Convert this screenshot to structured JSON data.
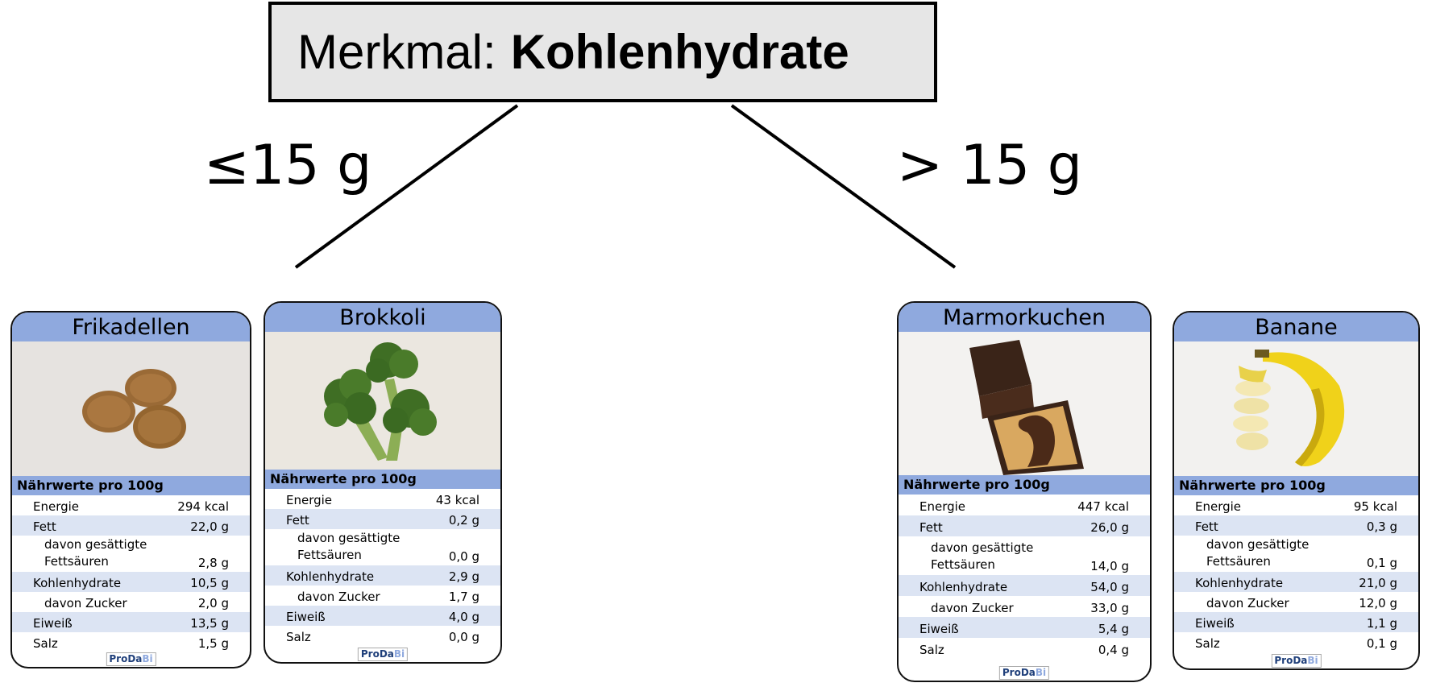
{
  "header": {
    "prefix": "Merkmal:",
    "feature": "Kohlenhydrate"
  },
  "branches": {
    "left": "≤15 g",
    "right": "> 15 g"
  },
  "cards": [
    {
      "title": "Frikadellen",
      "nutrition_heading": "Nährwerte pro 100g",
      "rows": [
        {
          "label": "Energie",
          "value": "294 kcal"
        },
        {
          "label": "Fett",
          "value": "22,0 g"
        },
        {
          "label1": "davon gesättigte",
          "label2": "Fettsäuren",
          "value": "2,8 g"
        },
        {
          "label": "Kohlenhydrate",
          "value": "10,5 g"
        },
        {
          "label": "davon Zucker",
          "value": "2,0 g"
        },
        {
          "label": "Eiweiß",
          "value": "13,5 g"
        },
        {
          "label": "Salz",
          "value": "1,5 g"
        }
      ],
      "logo": {
        "a": "ProDa",
        "b": "Bi"
      }
    },
    {
      "title": "Brokkoli",
      "nutrition_heading": "Nährwerte pro 100g",
      "rows": [
        {
          "label": "Energie",
          "value": "43 kcal"
        },
        {
          "label": "Fett",
          "value": "0,2 g"
        },
        {
          "label1": "davon gesättigte",
          "label2": "Fettsäuren",
          "value": "0,0 g"
        },
        {
          "label": "Kohlenhydrate",
          "value": "2,9 g"
        },
        {
          "label": "davon Zucker",
          "value": "1,7 g"
        },
        {
          "label": "Eiweiß",
          "value": "4,0 g"
        },
        {
          "label": "Salz",
          "value": "0,0 g"
        }
      ],
      "logo": {
        "a": "ProDa",
        "b": "Bi"
      }
    },
    {
      "title": "Marmorkuchen",
      "nutrition_heading": "Nährwerte pro 100g",
      "rows": [
        {
          "label": "Energie",
          "value": "447 kcal"
        },
        {
          "label": "Fett",
          "value": "26,0 g"
        },
        {
          "label1": "davon gesättigte",
          "label2": "Fettsäuren",
          "value": "14,0 g"
        },
        {
          "label": "Kohlenhydrate",
          "value": "54,0 g"
        },
        {
          "label": "davon Zucker",
          "value": "33,0 g"
        },
        {
          "label": "Eiweiß",
          "value": "5,4 g"
        },
        {
          "label": "Salz",
          "value": "0,4 g"
        }
      ],
      "logo": {
        "a": "ProDa",
        "b": "Bi"
      }
    },
    {
      "title": "Banane",
      "nutrition_heading": "Nährwerte pro 100g",
      "rows": [
        {
          "label": "Energie",
          "value": "95 kcal"
        },
        {
          "label": "Fett",
          "value": "0,3 g"
        },
        {
          "label1": "davon gesättigte",
          "label2": "Fettsäuren",
          "value": "0,1 g"
        },
        {
          "label": "Kohlenhydrate",
          "value": "21,0 g"
        },
        {
          "label": "davon Zucker",
          "value": "12,0 g"
        },
        {
          "label": "Eiweiß",
          "value": "1,1 g"
        },
        {
          "label": "Salz",
          "value": "0,1 g"
        }
      ],
      "logo": {
        "a": "ProDa",
        "b": "Bi"
      }
    }
  ],
  "colors": {
    "card_header": "#8fa9de",
    "row_shade": "#dce4f3",
    "header_box": "#e6e6e6"
  }
}
